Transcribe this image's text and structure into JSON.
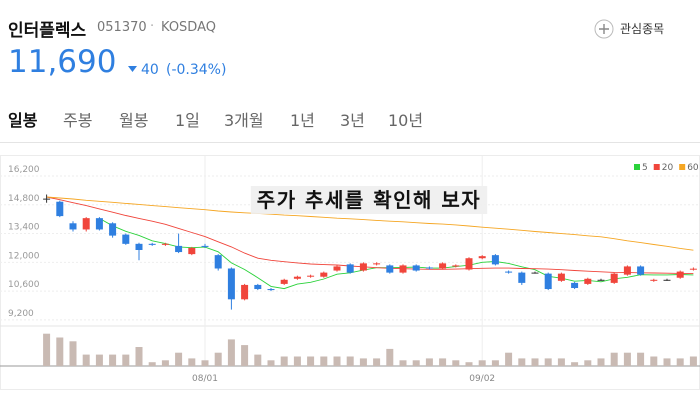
{
  "header": {
    "name": "인터플렉스",
    "code": "051370",
    "market": "KOSDAQ",
    "watch": "관심종목",
    "price": "11,690",
    "change": "40",
    "change_pct": "(-0.34%)"
  },
  "tabs": [
    "일봉",
    "주봉",
    "월봉",
    "1일",
    "3개월",
    "1년",
    "3년",
    "10년"
  ],
  "chart_data": {
    "type": "candlestick",
    "annotation": "주가 추세를 확인해 보자",
    "categories": [
      null,
      null,
      null,
      null,
      null,
      null,
      null,
      null,
      null,
      null,
      null,
      null,
      "08/01",
      null,
      null,
      null,
      null,
      null,
      null,
      null,
      null,
      null,
      null,
      null,
      null,
      null,
      null,
      null,
      null,
      null,
      null,
      null,
      null,
      "09/02",
      null,
      null,
      null,
      null,
      null,
      null,
      null,
      null,
      null,
      null,
      null,
      null,
      null,
      null,
      null,
      null
    ],
    "open": [
      15100,
      14950,
      13900,
      13600,
      14150,
      13900,
      13350,
      12900,
      12900,
      12850,
      12800,
      12400,
      12800,
      12350,
      11700,
      10200,
      10900,
      10700,
      10950,
      11200,
      11300,
      11300,
      11600,
      11900,
      11600,
      11900,
      11850,
      11500,
      11850,
      11750,
      11700,
      11800,
      11650,
      12200,
      12350,
      11550,
      11500,
      11500,
      11450,
      11100,
      11000,
      10950,
      11150,
      11000,
      11400,
      11800,
      11100,
      11150,
      11250,
      11650
    ],
    "high": [
      15300,
      15000,
      14000,
      14200,
      14200,
      13950,
      13400,
      12950,
      12950,
      12950,
      13400,
      12750,
      12900,
      12400,
      11750,
      10950,
      10950,
      10750,
      11200,
      11350,
      11400,
      11550,
      11850,
      11950,
      12000,
      12000,
      11900,
      11900,
      11900,
      11800,
      12000,
      11900,
      12250,
      12350,
      12400,
      11600,
      11550,
      11550,
      11500,
      11500,
      11050,
      11250,
      11200,
      11500,
      11850,
      11850,
      11200,
      11200,
      11600,
      11750
    ],
    "low": [
      14900,
      14200,
      13500,
      13500,
      13550,
      13200,
      12850,
      12100,
      12800,
      12800,
      12450,
      12350,
      12700,
      11600,
      9700,
      10150,
      10650,
      10600,
      10900,
      11150,
      11250,
      11250,
      11550,
      11450,
      11550,
      11850,
      11450,
      11450,
      11550,
      11650,
      11650,
      11750,
      11600,
      12150,
      11850,
      11450,
      10900,
      11450,
      10650,
      11050,
      10700,
      10900,
      11100,
      10950,
      11350,
      11350,
      11050,
      11100,
      11200,
      11600
    ],
    "close": [
      15100,
      14250,
      13600,
      14150,
      13600,
      13300,
      12900,
      12600,
      12850,
      12900,
      12500,
      12700,
      12750,
      11700,
      10200,
      10900,
      10700,
      10650,
      11150,
      11300,
      11350,
      11500,
      11800,
      11500,
      11950,
      11950,
      11500,
      11850,
      11600,
      11700,
      11950,
      11850,
      12200,
      12300,
      11900,
      11500,
      11000,
      11500,
      10700,
      11450,
      10750,
      11200,
      11150,
      11450,
      11800,
      11400,
      11150,
      11150,
      11550,
      11690
    ],
    "up_color": "#f0453b",
    "down_color": "#2f7fe0",
    "ylim": [
      8950,
      16980
    ],
    "yticks": [
      {
        "value": 9200,
        "label": "9,200"
      },
      {
        "value": 10600,
        "label": "10,600"
      },
      {
        "value": 12000,
        "label": "12,000"
      },
      {
        "value": 13400,
        "label": "13,400"
      },
      {
        "value": 14800,
        "label": "14,800"
      },
      {
        "value": 16200,
        "label": "16,200"
      }
    ],
    "grid": true,
    "legend_position": "top-right",
    "series": [
      {
        "name": "5",
        "color": "#2bd23b",
        "values": [
          null,
          null,
          null,
          null,
          14140,
          13780,
          13510,
          13310,
          13050,
          12910,
          12750,
          12710,
          12740,
          12510,
          11970,
          11650,
          11250,
          10830,
          10720,
          10940,
          11030,
          11190,
          11420,
          11490,
          11620,
          11740,
          11740,
          11750,
          11770,
          11720,
          11720,
          11790,
          11860,
          12000,
          12040,
          11950,
          11780,
          11640,
          11320,
          11230,
          11080,
          11120,
          11050,
          11200,
          11270,
          11400,
          11390,
          11390,
          11410,
          11390
        ]
      },
      {
        "name": "20",
        "color": "#f0453b",
        "values": [
          15180,
          15050,
          14900,
          14760,
          14600,
          14440,
          14280,
          14140,
          14000,
          13850,
          13650,
          13450,
          13250,
          13000,
          12750,
          12450,
          12200,
          12100,
          12030,
          11970,
          11920,
          11890,
          11870,
          11820,
          11780,
          11740,
          11710,
          11690,
          11670,
          11660,
          11660,
          11670,
          11690,
          11710,
          11720,
          11720,
          11700,
          11690,
          11670,
          11640,
          11600,
          11570,
          11540,
          11510,
          11500,
          11490,
          11480,
          11470,
          11460,
          11460
        ]
      },
      {
        "name": "60",
        "color": "#f5a623",
        "values": [
          15180,
          15130,
          15080,
          15020,
          14970,
          14920,
          14870,
          14820,
          14760,
          14710,
          14660,
          14610,
          14560,
          14500,
          14450,
          14410,
          14380,
          14340,
          14300,
          14270,
          14230,
          14190,
          14150,
          14120,
          14080,
          14040,
          14000,
          13970,
          13930,
          13890,
          13860,
          13820,
          13770,
          13710,
          13660,
          13610,
          13560,
          13500,
          13450,
          13400,
          13350,
          13290,
          13240,
          13150,
          13050,
          12960,
          12870,
          12780,
          12680,
          12590
        ]
      }
    ],
    "volume": {
      "color": "#c9bab3",
      "ylim": [
        0,
        40
      ],
      "values": [
        34,
        30,
        26,
        12,
        12,
        12,
        12,
        20,
        4,
        6,
        14,
        8,
        6,
        14,
        28,
        22,
        12,
        6,
        10,
        10,
        10,
        10,
        10,
        10,
        8,
        8,
        18,
        6,
        6,
        8,
        8,
        6,
        4,
        6,
        6,
        14,
        8,
        8,
        8,
        8,
        4,
        6,
        8,
        14,
        14,
        14,
        10,
        8,
        8,
        10
      ]
    }
  }
}
